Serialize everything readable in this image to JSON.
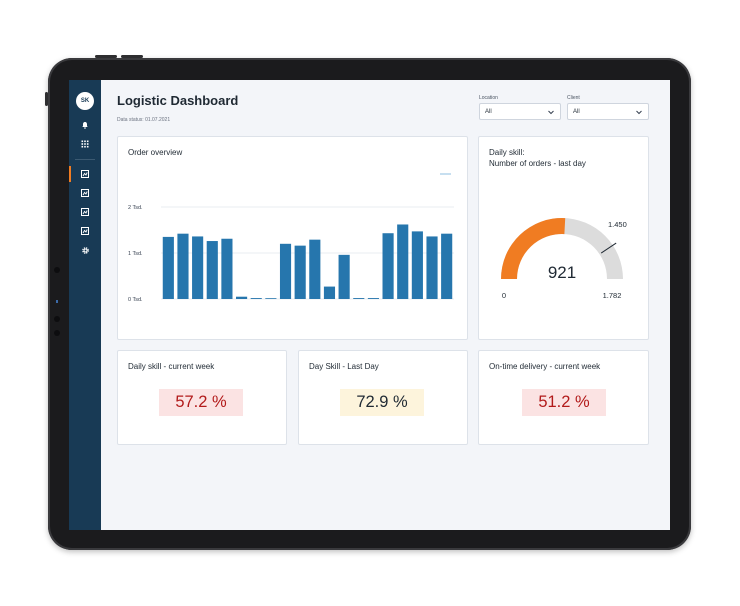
{
  "sidebar": {
    "avatar_initials": "SK",
    "icons": [
      "bell-icon",
      "apps-grid-icon",
      "chart-report-icon",
      "report-icon",
      "report-icon",
      "report-icon",
      "gear-icon"
    ]
  },
  "header": {
    "title": "Logistic Dashboard",
    "data_status": "Data status: 01.07.2021"
  },
  "filters": {
    "location_label": "Location",
    "location_value": "All",
    "client_label": "Client",
    "client_value": "All"
  },
  "order_overview": {
    "title": "Order overview",
    "chart_data": {
      "type": "bar",
      "title": "Order overview",
      "ytick_labels": [
        "0 Tsd.",
        "1 Tsd.",
        "2 Tsd."
      ],
      "ylim": [
        0,
        2000
      ],
      "grid": true,
      "color": "#2676ad",
      "values": [
        1350,
        1420,
        1360,
        1260,
        1310,
        50,
        20,
        0,
        1200,
        1160,
        1290,
        270,
        960,
        20,
        20,
        1430,
        1620,
        1470,
        1360,
        1420
      ]
    }
  },
  "gauge": {
    "title_line1": "Daily skill:",
    "title_line2": "Number of orders - last day",
    "chart_data": {
      "type": "gauge",
      "value": 921,
      "min": 0,
      "max": 1782,
      "target": 1450,
      "value_label": "921",
      "min_label": "0",
      "max_label": "1.782",
      "target_label": "1.450",
      "fill_color": "#f07c22",
      "track_color": "#dcdcdc"
    }
  },
  "kpis": [
    {
      "title": "Daily skill - current week",
      "value": "57.2 %"
    },
    {
      "title": "Day Skill - Last Day",
      "value": "72.9 %"
    },
    {
      "title": "On-time delivery - current week",
      "value": "51.2 %"
    }
  ]
}
